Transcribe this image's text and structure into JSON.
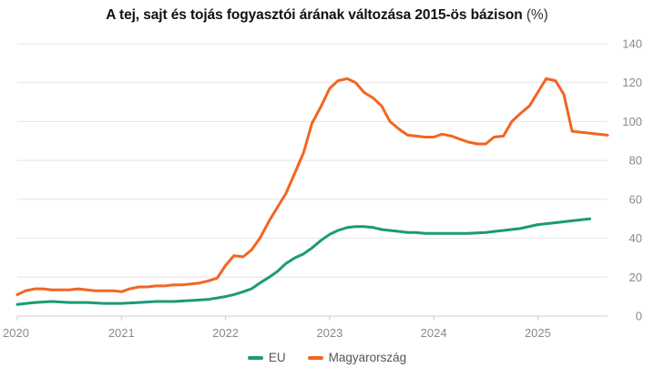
{
  "title": {
    "main": "A tej, sajt és tojás fogyasztói árának változása 2015-ös bázison",
    "unit": "(%)"
  },
  "colors": {
    "eu": "#1a9b75",
    "hu": "#f26522",
    "grid": "#e4e4e4",
    "axis": "#cccccc"
  },
  "chart_data": {
    "type": "line",
    "title": "A tej, sajt és tojás fogyasztói árának változása 2015-ös bázison (%)",
    "xlabel": "",
    "ylabel": "",
    "xlim": [
      2020.0,
      2025.67
    ],
    "ylim": [
      0,
      140
    ],
    "x_ticks": [
      "2020",
      "2021",
      "2022",
      "2023",
      "2024",
      "2025"
    ],
    "y_ticks": [
      "0",
      "20",
      "40",
      "60",
      "80",
      "100",
      "120",
      "140"
    ],
    "y_axis_side": "right",
    "grid": "horizontal",
    "legend_position": "bottom",
    "series": [
      {
        "name": "EU",
        "points": [
          [
            2020.0,
            6
          ],
          [
            2020.17,
            7
          ],
          [
            2020.33,
            7.5
          ],
          [
            2020.5,
            7
          ],
          [
            2020.67,
            7
          ],
          [
            2020.83,
            6.5
          ],
          [
            2021.0,
            6.5
          ],
          [
            2021.17,
            7
          ],
          [
            2021.33,
            7.5
          ],
          [
            2021.5,
            7.5
          ],
          [
            2021.67,
            8
          ],
          [
            2021.83,
            8.5
          ],
          [
            2022.0,
            10
          ],
          [
            2022.08,
            11
          ],
          [
            2022.17,
            12.5
          ],
          [
            2022.25,
            14
          ],
          [
            2022.33,
            17
          ],
          [
            2022.42,
            20
          ],
          [
            2022.5,
            23
          ],
          [
            2022.58,
            27
          ],
          [
            2022.67,
            30
          ],
          [
            2022.75,
            32
          ],
          [
            2022.83,
            35
          ],
          [
            2022.92,
            39
          ],
          [
            2023.0,
            42
          ],
          [
            2023.08,
            44
          ],
          [
            2023.17,
            45.5
          ],
          [
            2023.25,
            46
          ],
          [
            2023.33,
            46
          ],
          [
            2023.42,
            45.5
          ],
          [
            2023.5,
            44.5
          ],
          [
            2023.58,
            44
          ],
          [
            2023.67,
            43.5
          ],
          [
            2023.75,
            43
          ],
          [
            2023.83,
            43
          ],
          [
            2023.92,
            42.5
          ],
          [
            2024.0,
            42.5
          ],
          [
            2024.17,
            42.5
          ],
          [
            2024.33,
            42.5
          ],
          [
            2024.5,
            43
          ],
          [
            2024.58,
            43.5
          ],
          [
            2024.67,
            44
          ],
          [
            2024.83,
            45
          ],
          [
            2025.0,
            47
          ],
          [
            2025.17,
            48
          ],
          [
            2025.33,
            49
          ],
          [
            2025.5,
            50
          ]
        ]
      },
      {
        "name": "Magyarország",
        "points": [
          [
            2020.0,
            11
          ],
          [
            2020.08,
            13
          ],
          [
            2020.17,
            14
          ],
          [
            2020.25,
            14
          ],
          [
            2020.33,
            13.5
          ],
          [
            2020.42,
            13.5
          ],
          [
            2020.5,
            13.5
          ],
          [
            2020.58,
            14
          ],
          [
            2020.67,
            13.5
          ],
          [
            2020.75,
            13
          ],
          [
            2020.83,
            13
          ],
          [
            2020.92,
            13
          ],
          [
            2021.0,
            12.5
          ],
          [
            2021.08,
            14
          ],
          [
            2021.17,
            15
          ],
          [
            2021.25,
            15
          ],
          [
            2021.33,
            15.5
          ],
          [
            2021.42,
            15.5
          ],
          [
            2021.5,
            16
          ],
          [
            2021.58,
            16
          ],
          [
            2021.67,
            16.5
          ],
          [
            2021.75,
            17
          ],
          [
            2021.83,
            18
          ],
          [
            2021.92,
            19.5
          ],
          [
            2022.0,
            26
          ],
          [
            2022.08,
            31
          ],
          [
            2022.17,
            30.5
          ],
          [
            2022.25,
            34
          ],
          [
            2022.33,
            40
          ],
          [
            2022.42,
            49
          ],
          [
            2022.5,
            56
          ],
          [
            2022.58,
            63
          ],
          [
            2022.67,
            74
          ],
          [
            2022.75,
            84
          ],
          [
            2022.83,
            99
          ],
          [
            2022.92,
            108
          ],
          [
            2023.0,
            117
          ],
          [
            2023.08,
            121
          ],
          [
            2023.17,
            122
          ],
          [
            2023.25,
            120
          ],
          [
            2023.33,
            115
          ],
          [
            2023.42,
            112
          ],
          [
            2023.5,
            108
          ],
          [
            2023.58,
            100
          ],
          [
            2023.67,
            96
          ],
          [
            2023.75,
            93
          ],
          [
            2023.83,
            92.5
          ],
          [
            2023.92,
            92
          ],
          [
            2024.0,
            92
          ],
          [
            2024.08,
            93.5
          ],
          [
            2024.17,
            92.5
          ],
          [
            2024.25,
            91
          ],
          [
            2024.33,
            89.5
          ],
          [
            2024.42,
            88.5
          ],
          [
            2024.5,
            88.5
          ],
          [
            2024.58,
            92
          ],
          [
            2024.67,
            92.5
          ],
          [
            2024.75,
            100
          ],
          [
            2024.83,
            104
          ],
          [
            2024.92,
            108
          ],
          [
            2025.0,
            115
          ],
          [
            2025.08,
            122
          ],
          [
            2025.17,
            121
          ],
          [
            2025.25,
            114
          ],
          [
            2025.33,
            95
          ],
          [
            2025.5,
            94
          ],
          [
            2025.67,
            93
          ]
        ]
      }
    ]
  }
}
